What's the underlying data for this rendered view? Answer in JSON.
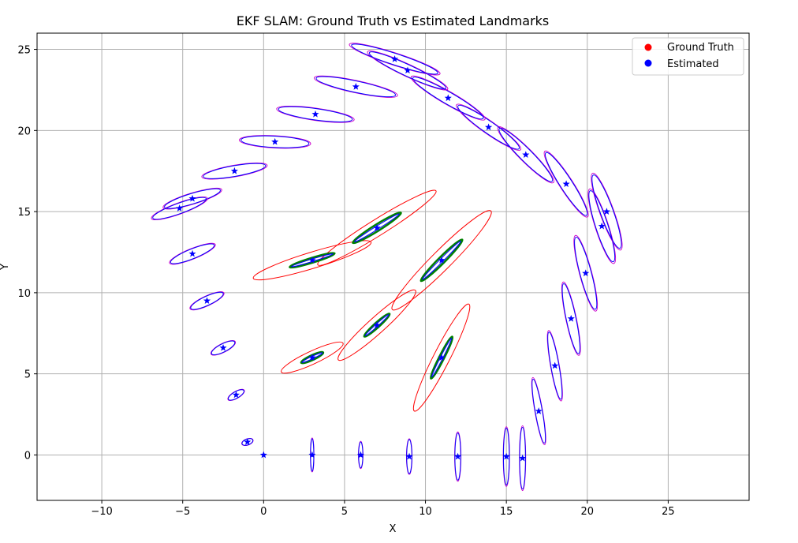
{
  "chart_data": {
    "type": "scatter",
    "title": "EKF SLAM: Ground Truth vs Estimated Landmarks",
    "xlabel": "X",
    "ylabel": "Y",
    "xlim": [
      -14.0,
      30.0
    ],
    "ylim": [
      -2.8,
      26.0
    ],
    "xticks": [
      -10,
      -5,
      0,
      5,
      10,
      15,
      20,
      25
    ],
    "yticks": [
      0,
      5,
      10,
      15,
      20,
      25
    ],
    "grid": true,
    "legend": {
      "placement": "top-right",
      "entries": [
        {
          "name": "Ground Truth",
          "color": "#ff0000"
        },
        {
          "name": "Estimated",
          "color": "#0000ff"
        }
      ]
    },
    "colors": {
      "ground_truth": "#ff0000",
      "estimated": "#0000ff",
      "cov_magenta": "#cc00cc",
      "cov_blue": "#0000ff",
      "cov_red": "#ff0000",
      "cov_green": "#008000",
      "grid": "#b0b0b0"
    },
    "trajectory": [
      {
        "x": 0.0,
        "y": 0.0
      },
      {
        "x": 3.0,
        "y": 0.0
      },
      {
        "x": 6.0,
        "y": 0.0
      },
      {
        "x": 9.0,
        "y": -0.1
      },
      {
        "x": 12.0,
        "y": -0.1
      },
      {
        "x": 15.0,
        "y": -0.1
      },
      {
        "x": 16.0,
        "y": -0.2
      },
      {
        "x": 17.0,
        "y": 2.7
      },
      {
        "x": 18.0,
        "y": 5.5
      },
      {
        "x": 19.0,
        "y": 8.4
      },
      {
        "x": 19.9,
        "y": 11.2
      },
      {
        "x": 20.9,
        "y": 14.1
      },
      {
        "x": 21.2,
        "y": 15.0
      },
      {
        "x": 18.7,
        "y": 16.7
      },
      {
        "x": 16.2,
        "y": 18.5
      },
      {
        "x": 13.9,
        "y": 20.2
      },
      {
        "x": 11.4,
        "y": 22.0
      },
      {
        "x": 8.9,
        "y": 23.7
      },
      {
        "x": 8.1,
        "y": 24.4
      },
      {
        "x": 5.7,
        "y": 22.7
      },
      {
        "x": 3.2,
        "y": 21.0
      },
      {
        "x": 0.7,
        "y": 19.3
      },
      {
        "x": -1.8,
        "y": 17.5
      },
      {
        "x": -4.4,
        "y": 15.8
      },
      {
        "x": -5.2,
        "y": 15.2
      },
      {
        "x": -4.4,
        "y": 12.4
      },
      {
        "x": -3.5,
        "y": 9.5
      },
      {
        "x": -2.5,
        "y": 6.6
      },
      {
        "x": -1.7,
        "y": 3.7
      },
      {
        "x": -1.0,
        "y": 0.8
      }
    ],
    "landmarks": [
      {
        "x": 3.0,
        "y": 6.0
      },
      {
        "x": 7.0,
        "y": 8.0
      },
      {
        "x": 11.0,
        "y": 6.0
      },
      {
        "x": 3.0,
        "y": 12.0
      },
      {
        "x": 7.0,
        "y": 14.0
      },
      {
        "x": 11.0,
        "y": 12.0
      }
    ],
    "pose_covariance": [
      {
        "cx": 3.0,
        "cy": 0.0,
        "rx": 0.1,
        "ry": 1.0,
        "angle": 0
      },
      {
        "cx": 6.0,
        "cy": 0.0,
        "rx": 0.13,
        "ry": 0.8,
        "angle": 0
      },
      {
        "cx": 9.0,
        "cy": -0.1,
        "rx": 0.16,
        "ry": 1.05,
        "angle": 0
      },
      {
        "cx": 12.0,
        "cy": -0.1,
        "rx": 0.18,
        "ry": 1.45,
        "angle": 0
      },
      {
        "cx": 15.0,
        "cy": -0.1,
        "rx": 0.18,
        "ry": 1.75,
        "angle": 0
      },
      {
        "cx": 16.0,
        "cy": -0.2,
        "rx": 0.18,
        "ry": 1.9,
        "angle": 0
      },
      {
        "cx": 17.0,
        "cy": 2.7,
        "rx": 0.22,
        "ry": 2.0,
        "angle": -10
      },
      {
        "cx": 18.0,
        "cy": 5.5,
        "rx": 0.25,
        "ry": 2.1,
        "angle": -10
      },
      {
        "cx": 19.0,
        "cy": 8.4,
        "rx": 0.3,
        "ry": 2.2,
        "angle": -12
      },
      {
        "cx": 19.9,
        "cy": 11.2,
        "rx": 0.35,
        "ry": 2.3,
        "angle": -15
      },
      {
        "cx": 20.9,
        "cy": 14.1,
        "rx": 0.38,
        "ry": 2.3,
        "angle": -18
      },
      {
        "cx": 21.2,
        "cy": 15.0,
        "rx": 0.4,
        "ry": 2.4,
        "angle": -20
      },
      {
        "cx": 18.7,
        "cy": 16.7,
        "rx": 0.38,
        "ry": 2.3,
        "angle": -33
      },
      {
        "cx": 16.2,
        "cy": 18.5,
        "rx": 0.38,
        "ry": 2.3,
        "angle": -45
      },
      {
        "cx": 13.9,
        "cy": 20.2,
        "rx": 0.37,
        "ry": 2.3,
        "angle": -55
      },
      {
        "cx": 11.4,
        "cy": 22.0,
        "rx": 0.37,
        "ry": 2.5,
        "angle": -60
      },
      {
        "cx": 8.9,
        "cy": 23.7,
        "rx": 0.35,
        "ry": 2.6,
        "angle": -65
      },
      {
        "cx": 8.1,
        "cy": 24.4,
        "rx": 0.35,
        "ry": 2.8,
        "angle": -72
      },
      {
        "cx": 5.7,
        "cy": 22.7,
        "rx": 0.35,
        "ry": 2.5,
        "angle": -78
      },
      {
        "cx": 3.2,
        "cy": 21.0,
        "rx": 0.35,
        "ry": 2.3,
        "angle": -82
      },
      {
        "cx": 0.7,
        "cy": 19.3,
        "rx": 0.35,
        "ry": 2.1,
        "angle": -87
      },
      {
        "cx": -1.8,
        "cy": 17.5,
        "rx": 0.33,
        "ry": 1.95,
        "angle": 80
      },
      {
        "cx": -4.4,
        "cy": 15.8,
        "rx": 0.32,
        "ry": 1.8,
        "angle": 73
      },
      {
        "cx": -5.2,
        "cy": 15.2,
        "rx": 0.32,
        "ry": 1.75,
        "angle": 70
      },
      {
        "cx": -4.4,
        "cy": 12.4,
        "rx": 0.3,
        "ry": 1.45,
        "angle": 68
      },
      {
        "cx": -3.5,
        "cy": 9.5,
        "rx": 0.28,
        "ry": 1.1,
        "angle": 65
      },
      {
        "cx": -2.5,
        "cy": 6.6,
        "rx": 0.25,
        "ry": 0.8,
        "angle": 63
      },
      {
        "cx": -1.7,
        "cy": 3.7,
        "rx": 0.2,
        "ry": 0.55,
        "angle": 60
      },
      {
        "cx": -1.0,
        "cy": 0.8,
        "rx": 0.18,
        "ry": 0.35,
        "angle": 70
      }
    ],
    "landmark_initial_covariance": [
      {
        "cx": 3.0,
        "cy": 6.0,
        "rx": 0.4,
        "ry": 2.1,
        "angle": 65
      },
      {
        "cx": 7.0,
        "cy": 8.0,
        "rx": 0.5,
        "ry": 3.2,
        "angle": 48
      },
      {
        "cx": 11.0,
        "cy": 6.0,
        "rx": 0.5,
        "ry": 3.7,
        "angle": 27
      },
      {
        "cx": 3.0,
        "cy": 12.0,
        "rx": 0.5,
        "ry": 3.8,
        "angle": 73
      },
      {
        "cx": 7.0,
        "cy": 14.0,
        "rx": 0.5,
        "ry": 4.3,
        "angle": 58
      },
      {
        "cx": 11.0,
        "cy": 12.0,
        "rx": 0.6,
        "ry": 4.3,
        "angle": 45
      }
    ],
    "landmark_final_covariance": [
      {
        "cx": 3.0,
        "cy": 6.0,
        "rx": 0.15,
        "ry": 0.75,
        "angle": 65
      },
      {
        "cx": 7.0,
        "cy": 8.0,
        "rx": 0.15,
        "ry": 1.05,
        "angle": 48
      },
      {
        "cx": 11.0,
        "cy": 6.0,
        "rx": 0.15,
        "ry": 1.45,
        "angle": 27
      },
      {
        "cx": 3.0,
        "cy": 12.0,
        "rx": 0.15,
        "ry": 1.45,
        "angle": 73
      },
      {
        "cx": 7.0,
        "cy": 14.0,
        "rx": 0.2,
        "ry": 1.75,
        "angle": 58
      },
      {
        "cx": 11.0,
        "cy": 12.0,
        "rx": 0.2,
        "ry": 1.8,
        "angle": 45
      }
    ]
  }
}
